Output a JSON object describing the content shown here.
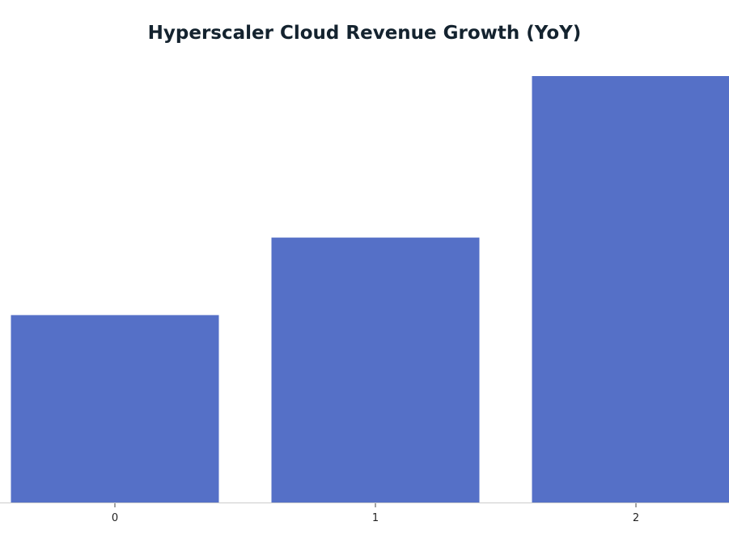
{
  "chart_data": {
    "type": "bar",
    "title": "Hyperscaler Cloud Revenue Growth (YoY)",
    "xlabel": "",
    "ylabel": "",
    "categories": [
      "0",
      "1",
      "2"
    ],
    "values": [
      29,
      41,
      66
    ],
    "ylim": [
      0,
      66
    ],
    "grid": false,
    "legend": "none",
    "colors": {
      "bar": "#5570c7",
      "axis": "#cccccc",
      "title": "#14232f",
      "tick_text": "#222222"
    }
  }
}
